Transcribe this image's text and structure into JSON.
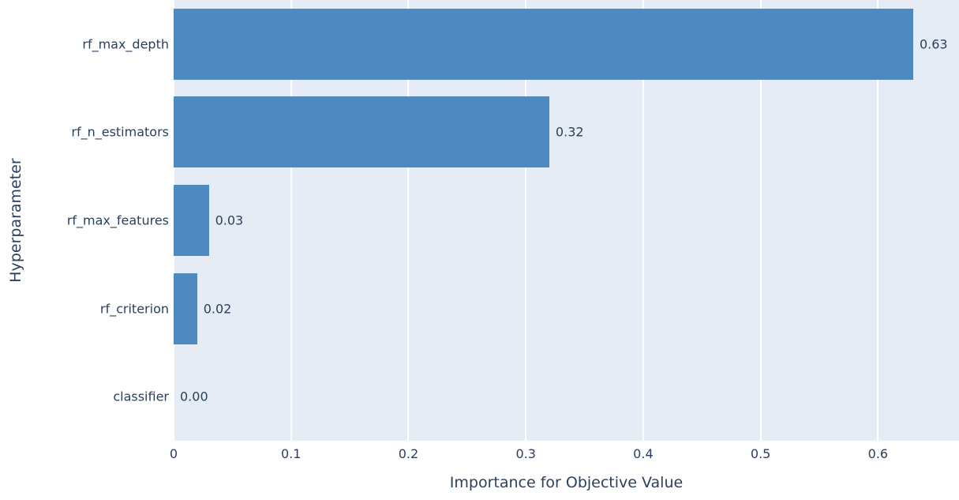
{
  "figure": {
    "background_color": "#ffffff",
    "plot_background_color": "#e5ecf6",
    "bar_color": "#4e8ac0",
    "text_color": "#2a3f5f",
    "gridline_color": "#ffffff"
  },
  "chart_data": {
    "type": "bar",
    "orientation": "horizontal",
    "title": "",
    "xlabel": "Importance for Objective Value",
    "ylabel": "Hyperparameter",
    "categories": [
      "rf_max_depth",
      "rf_n_estimators",
      "rf_max_features",
      "rf_criterion",
      "classifier"
    ],
    "values": [
      0.63,
      0.32,
      0.03,
      0.02,
      0.0
    ],
    "value_labels": [
      "0.63",
      "0.32",
      "0.03",
      "0.02",
      "0.00"
    ],
    "xlim": [
      0,
      0.669
    ],
    "x_ticks": [
      0,
      0.1,
      0.2,
      0.3,
      0.4,
      0.5,
      0.6
    ],
    "x_tick_labels": [
      "0",
      "0.1",
      "0.2",
      "0.3",
      "0.4",
      "0.5",
      "0.6"
    ],
    "grid": true,
    "gridlines_behind_bars": true,
    "legend": false,
    "bar_value_label_position": "outside-right"
  }
}
